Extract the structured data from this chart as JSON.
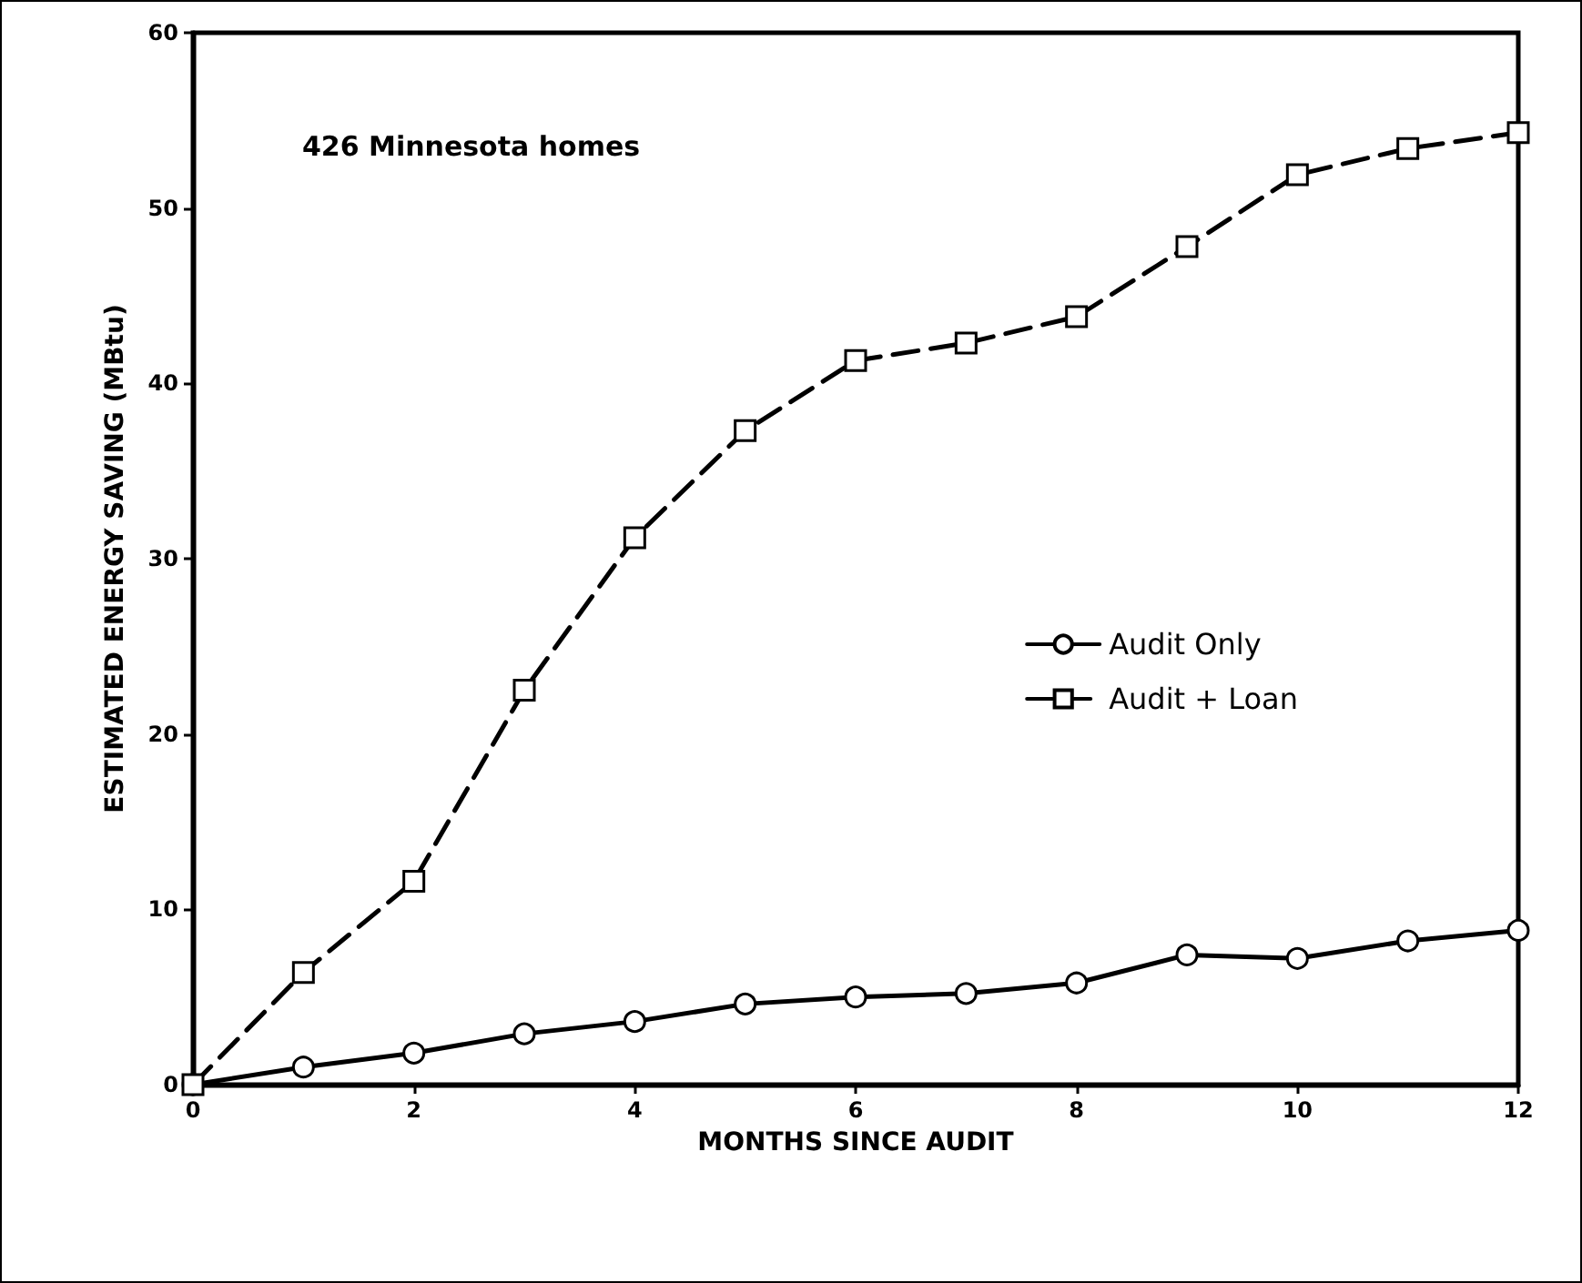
{
  "chart_data": {
    "type": "line",
    "xlabel": "MONTHS SINCE AUDIT",
    "ylabel": "ESTIMATED ENERGY SAVING (MBtu)",
    "annotations": [
      "426 Minnesota homes"
    ],
    "x": [
      0,
      1,
      2,
      3,
      4,
      5,
      6,
      7,
      8,
      9,
      10,
      11,
      12
    ],
    "series": [
      {
        "name": "Audit Only",
        "color": "#000000",
        "marker": "circle",
        "line_style": "solid",
        "values": [
          0,
          1.0,
          1.8,
          2.9,
          3.6,
          4.6,
          5.0,
          5.2,
          5.8,
          7.4,
          7.2,
          8.2,
          8.8
        ]
      },
      {
        "name": "Audit + Loan",
        "color": "#000000",
        "marker": "square",
        "line_style": "dashed",
        "values": [
          0,
          6.4,
          11.6,
          22.5,
          31.2,
          37.3,
          41.3,
          42.3,
          43.8,
          47.8,
          51.9,
          53.4,
          54.3
        ]
      }
    ],
    "xlim": [
      0,
      12
    ],
    "xticks": [
      0,
      2,
      4,
      6,
      8,
      10,
      12
    ],
    "ylim": [
      0,
      60
    ],
    "yticks": [
      0,
      10,
      20,
      30,
      40,
      50,
      60
    ],
    "grid": false,
    "legend": "right"
  }
}
